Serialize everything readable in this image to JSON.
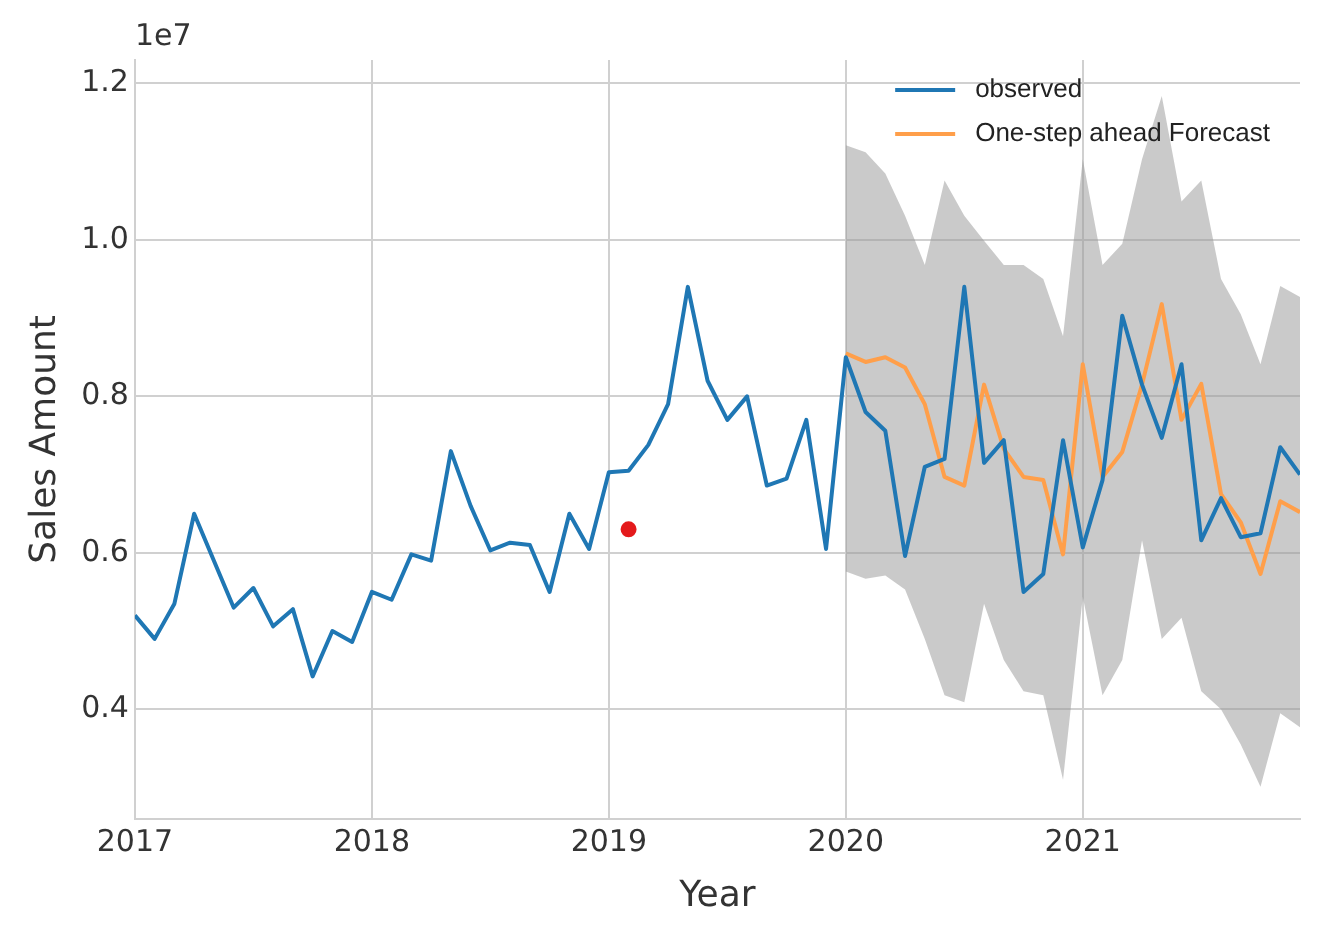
{
  "chart_data": {
    "type": "line",
    "xlabel": "Year",
    "ylabel": "Sales Amount",
    "annotations": [
      "1e7"
    ],
    "xlim": [
      "2017-01",
      "2021-12"
    ],
    "xticks": [
      "2017",
      "2018",
      "2019",
      "2020",
      "2021"
    ],
    "ylim": [
      0.26,
      1.23
    ],
    "yticks": [
      0.4,
      0.6,
      0.8,
      {
        "value": 1,
        "label": "1.0"
      },
      1.2
    ],
    "grid": true,
    "legend": "top right",
    "series": [
      {
        "name": "observed",
        "color": "#1f77b4",
        "x": [
          "2017-01",
          "2017-02",
          "2017-03",
          "2017-04",
          "2017-05",
          "2017-06",
          "2017-07",
          "2017-08",
          "2017-09",
          "2017-10",
          "2017-11",
          "2017-12",
          "2018-01",
          "2018-02",
          "2018-03",
          "2018-04",
          "2018-05",
          "2018-06",
          "2018-07",
          "2018-08",
          "2018-09",
          "2018-10",
          "2018-11",
          "2018-12",
          "2019-01",
          "2019-02",
          "2019-03",
          "2019-04",
          "2019-05",
          "2019-06",
          "2019-07",
          "2019-08",
          "2019-09",
          "2019-10",
          "2019-11",
          "2019-12",
          "2020-01",
          "2020-02",
          "2020-03",
          "2020-04",
          "2020-05",
          "2020-06",
          "2020-07",
          "2020-08",
          "2020-09",
          "2020-10",
          "2020-11",
          "2020-12",
          "2021-01",
          "2021-02",
          "2021-03",
          "2021-04",
          "2021-05",
          "2021-06",
          "2021-07",
          "2021-08",
          "2021-09",
          "2021-10",
          "2021-11",
          "2021-12"
        ],
        "values": [
          0.52,
          0.49,
          0.535,
          0.65,
          0.59,
          0.53,
          0.555,
          0.506,
          0.528,
          0.442,
          0.5,
          0.486,
          0.55,
          0.54,
          0.598,
          0.59,
          0.73,
          0.66,
          0.603,
          0.613,
          0.61,
          0.55,
          0.65,
          0.605,
          0.703,
          0.705,
          0.738,
          0.79,
          0.94,
          0.82,
          0.77,
          0.8,
          0.686,
          0.695,
          0.77,
          0.605,
          0.85,
          0.78,
          0.756,
          0.596,
          0.71,
          0.72,
          0.94,
          0.715,
          0.744,
          0.55,
          0.573,
          0.744,
          0.607,
          0.693,
          0.903,
          0.815,
          0.747,
          0.841,
          0.616,
          0.67,
          0.62,
          0.625,
          0.735,
          0.7
        ]
      },
      {
        "name": "One-step ahead Forecast",
        "color": "#ff9f4a",
        "x": [
          "2020-01",
          "2020-02",
          "2020-03",
          "2020-04",
          "2020-05",
          "2020-06",
          "2020-07",
          "2020-08",
          "2020-09",
          "2020-10",
          "2020-11",
          "2020-12",
          "2021-01",
          "2021-02",
          "2021-03",
          "2021-04",
          "2021-05",
          "2021-06",
          "2021-07",
          "2021-08",
          "2021-09",
          "2021-10",
          "2021-11",
          "2021-12"
        ],
        "values": [
          0.855,
          0.844,
          0.85,
          0.837,
          0.79,
          0.697,
          0.686,
          0.815,
          0.733,
          0.697,
          0.693,
          0.598,
          0.841,
          0.697,
          0.729,
          0.815,
          0.918,
          0.77,
          0.816,
          0.675,
          0.639,
          0.573,
          0.666,
          0.652
        ],
        "lower": [
          0.576,
          0.567,
          0.571,
          0.553,
          0.49,
          0.418,
          0.409,
          0.535,
          0.463,
          0.423,
          0.418,
          0.31,
          0.544,
          0.418,
          0.463,
          0.616,
          0.49,
          0.517,
          0.423,
          0.4,
          0.355,
          0.301,
          0.395,
          0.377
        ],
        "upper": [
          1.121,
          1.112,
          1.085,
          1.031,
          0.968,
          1.076,
          1.031,
          0.999,
          0.968,
          0.968,
          0.95,
          0.877,
          1.103,
          0.968,
          0.995,
          1.103,
          1.184,
          1.049,
          1.076,
          0.95,
          0.905,
          0.841,
          0.941,
          0.927
        ]
      },
      {
        "type": "scatter",
        "color": "#e41a1c",
        "x": [
          "2019-02"
        ],
        "values": [
          0.63
        ]
      }
    ]
  }
}
